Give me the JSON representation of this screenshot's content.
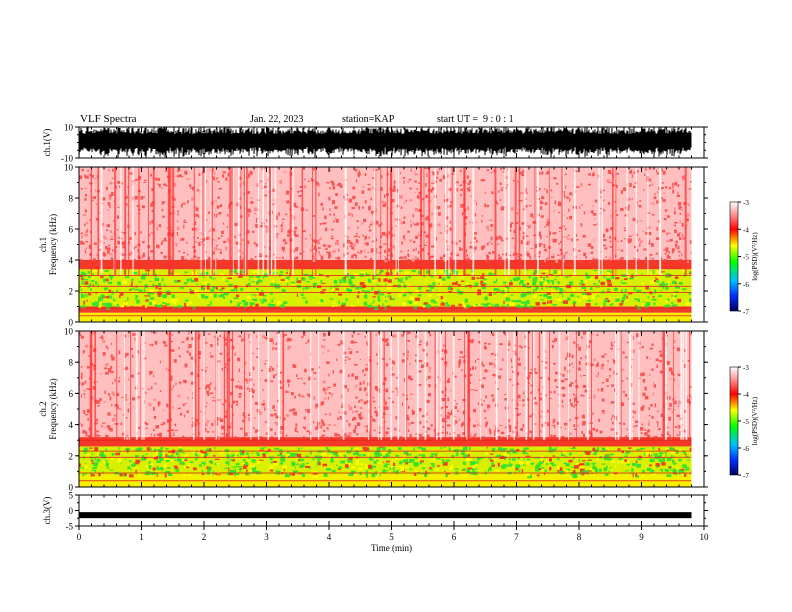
{
  "header": {
    "title": "VLF Spectra",
    "date": "Jan. 22, 2023",
    "station": "station=KAP",
    "start": "start UT =  9 : 0 : 1"
  },
  "colors": {
    "spectrogram_high": "#f03030",
    "spectrogram_mid": "#ffff00",
    "spectrogram_low": "#00d000",
    "waveform": "#000000"
  },
  "chart_data": [
    {
      "type": "line",
      "ylabel": "ch.1(V)",
      "ylim": [
        -10,
        10
      ],
      "yticks": [
        "10",
        "-10"
      ],
      "xlim": [
        0,
        10
      ],
      "description_visible": "dense black waveform filling range"
    },
    {
      "type": "heatmap",
      "ylabel": "ch.1\nFrequency (kHz)",
      "ylabel_line1": "ch.1",
      "ylabel_line2": "Frequency (kHz)",
      "ylim": [
        0,
        10
      ],
      "yticks": [
        "0",
        "2",
        "4",
        "6",
        "8",
        "10"
      ],
      "xlim": [
        0,
        10
      ],
      "data_extent_x": 9.8,
      "bands": [
        {
          "from": 0,
          "to": 0.6,
          "level": "yellow"
        },
        {
          "from": 0.6,
          "to": 1.0,
          "level": "red"
        },
        {
          "from": 1.0,
          "to": 3.4,
          "level": "green-yellow"
        },
        {
          "from": 3.4,
          "to": 4.0,
          "level": "red-dense"
        },
        {
          "from": 4.0,
          "to": 10,
          "level": "red-sparse"
        }
      ],
      "colorbar": {
        "label": "log(PSD)(V²/Hz)",
        "ticks": [
          "-3",
          "-4",
          "-5",
          "-6",
          "-7"
        ],
        "range": [
          -7,
          -3
        ]
      }
    },
    {
      "type": "heatmap",
      "ylabel_line1": "ch.2",
      "ylabel_line2": "Frequency (kHz)",
      "ylim": [
        0,
        10
      ],
      "yticks": [
        "0",
        "2",
        "4",
        "6",
        "8",
        "10"
      ],
      "xlim": [
        0,
        10
      ],
      "data_extent_x": 9.8,
      "bands": [
        {
          "from": 0,
          "to": 0.8,
          "level": "yellow"
        },
        {
          "from": 0.8,
          "to": 2.6,
          "level": "green-yellow"
        },
        {
          "from": 2.6,
          "to": 3.2,
          "level": "red-dense"
        },
        {
          "from": 3.2,
          "to": 10,
          "level": "red-sparse"
        }
      ],
      "colorbar": {
        "label": "log(PSD)(V²/Hz)",
        "ticks": [
          "-3",
          "-4",
          "-5",
          "-6",
          "-7"
        ],
        "range": [
          -7,
          -3
        ]
      }
    },
    {
      "type": "line",
      "ylabel": "ch.3(V)",
      "ylim": [
        -5,
        5
      ],
      "yticks": [
        "5",
        "0",
        "-5"
      ],
      "xlim": [
        0,
        10
      ],
      "xlabel": "Time (min)",
      "xticks": [
        "0",
        "1",
        "2",
        "3",
        "4",
        "5",
        "6",
        "7",
        "8",
        "9",
        "10"
      ],
      "signal_level": -1.5
    }
  ]
}
